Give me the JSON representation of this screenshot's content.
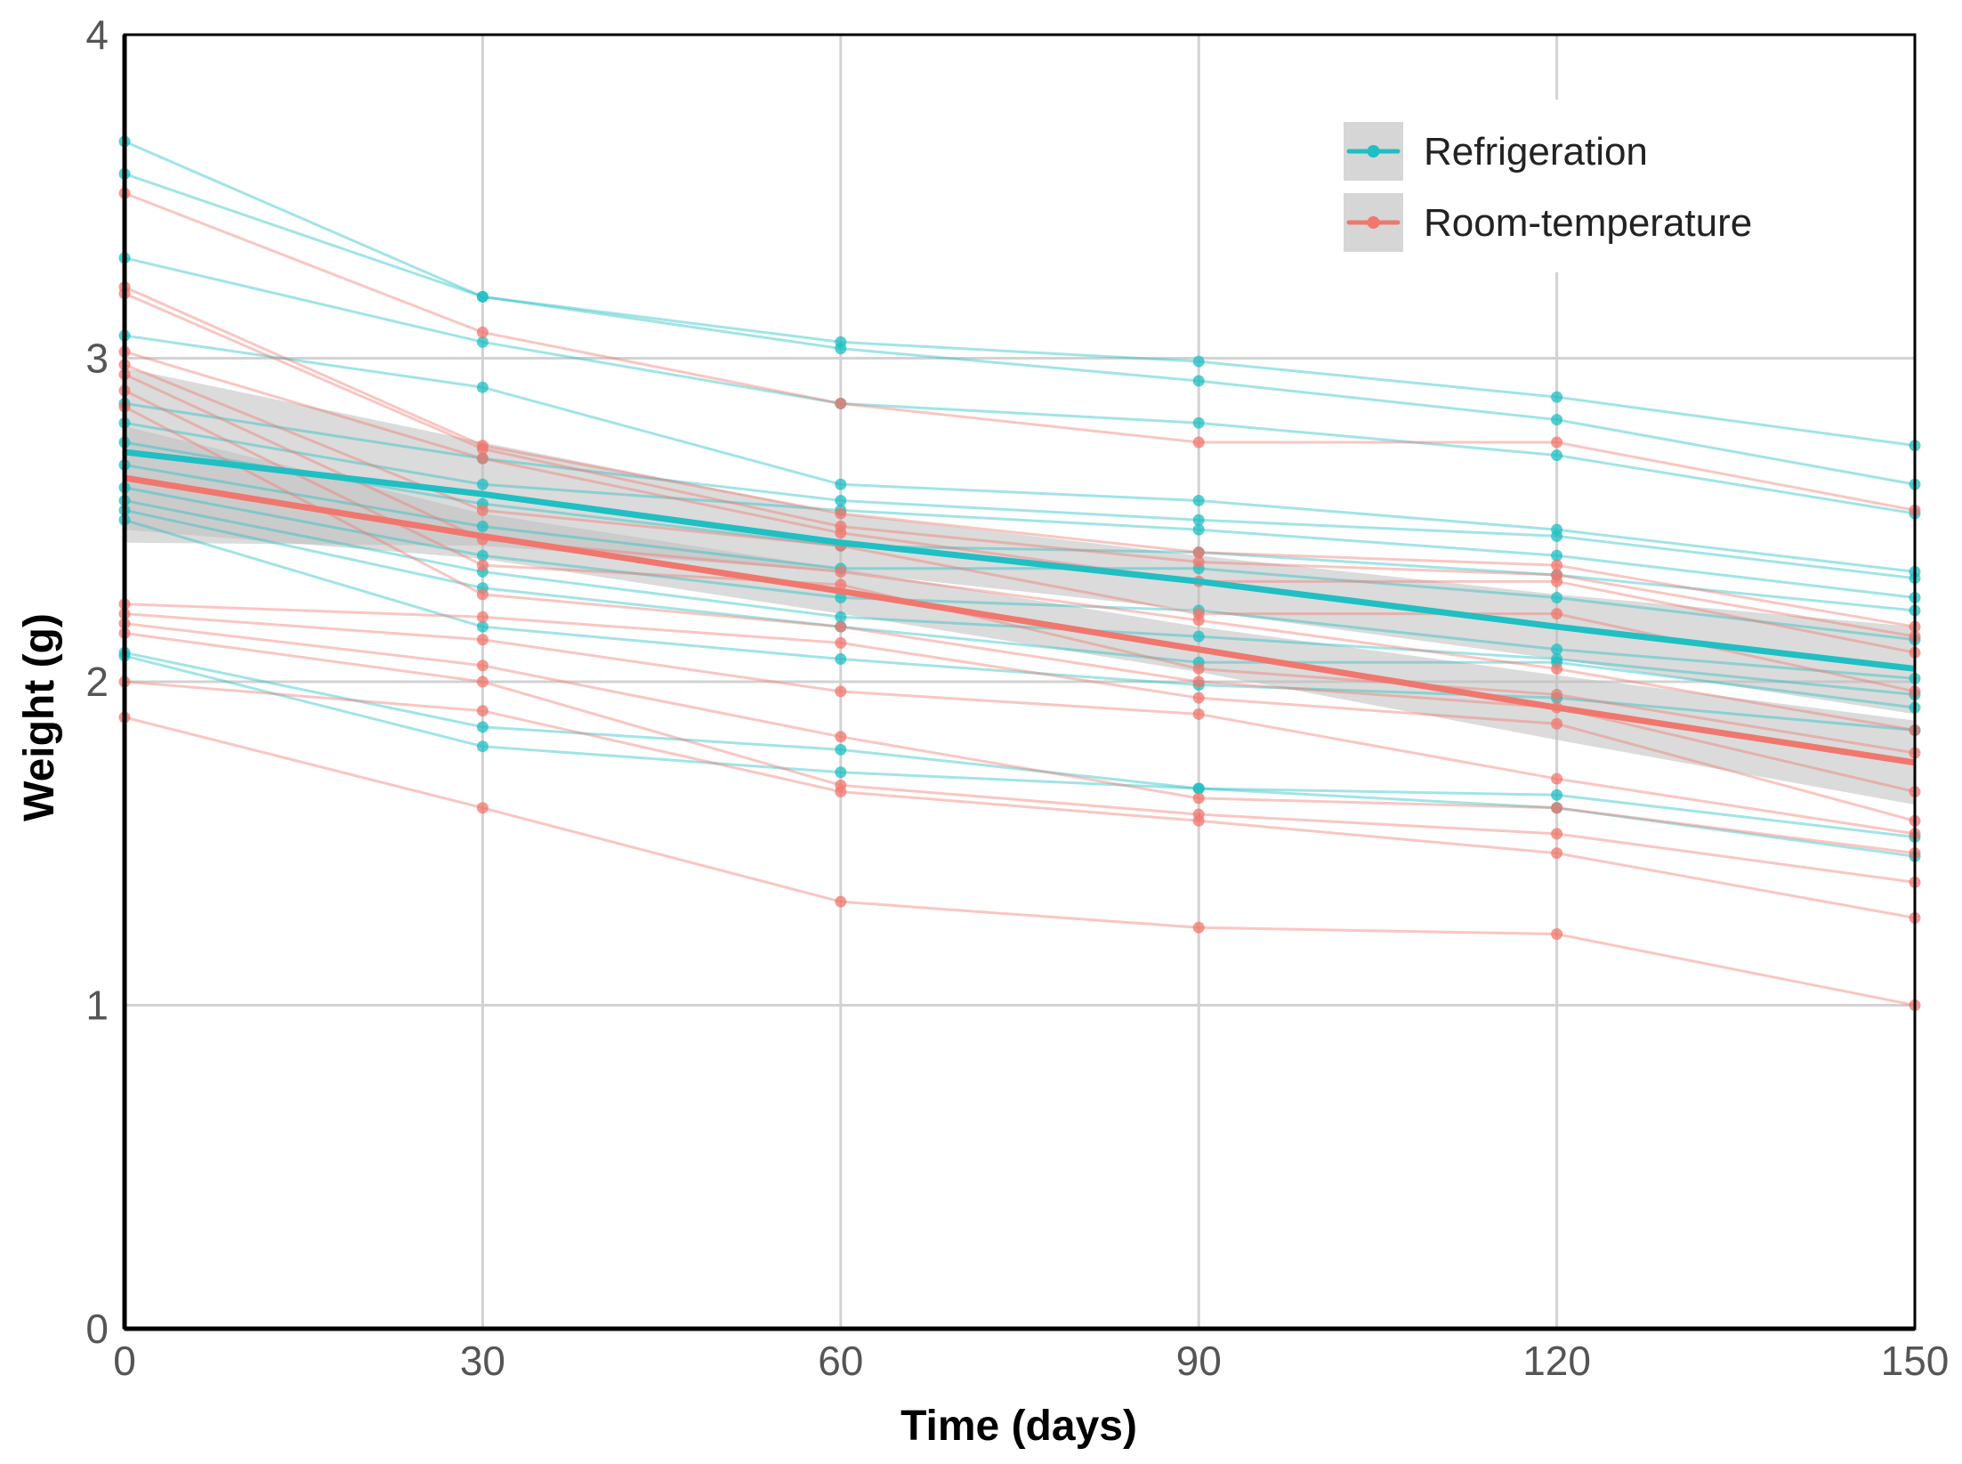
{
  "chart_data": {
    "type": "line",
    "title": "",
    "xlabel": "Time (days)",
    "ylabel": "Weight (g)",
    "xlim": [
      0,
      150
    ],
    "ylim": [
      0,
      4
    ],
    "x": [
      0,
      30,
      60,
      90,
      120,
      150
    ],
    "x_ticks": [
      "0",
      "30",
      "60",
      "90",
      "120",
      "150"
    ],
    "y_ticks": [
      "0",
      "1",
      "2",
      "3",
      "4"
    ],
    "grid": true,
    "legend_position": "top-right",
    "colors": {
      "Refrigeration": "#1FBFC3",
      "Room-temperature": "#F0776E",
      "band": "#BDBDBD"
    },
    "series": [
      {
        "name": "Refrigeration",
        "legend_label": "Refrigeration",
        "color": "#1FBFC3",
        "fit": [
          2.71,
          2.58,
          2.43,
          2.31,
          2.17,
          2.04
        ],
        "band_lower": [
          2.43,
          2.42,
          2.34,
          2.22,
          2.07,
          1.9
        ],
        "band_upper": [
          2.97,
          2.74,
          2.52,
          2.39,
          2.27,
          2.17
        ],
        "individuals": [
          [
            3.67,
            3.19,
            3.05,
            2.99,
            2.88,
            2.73
          ],
          [
            3.57,
            3.19,
            3.03,
            2.93,
            2.81,
            2.61
          ],
          [
            3.31,
            3.05,
            2.86,
            2.8,
            2.7,
            2.52
          ],
          [
            3.07,
            2.91,
            2.61,
            2.56,
            2.47,
            2.34
          ],
          [
            2.86,
            2.69,
            2.56,
            2.5,
            2.45,
            2.32
          ],
          [
            2.8,
            2.61,
            2.53,
            2.47,
            2.39,
            2.26
          ],
          [
            2.74,
            2.55,
            2.42,
            2.4,
            2.33,
            2.22
          ],
          [
            2.67,
            2.48,
            2.35,
            2.35,
            2.26,
            2.13
          ],
          [
            2.6,
            2.39,
            2.26,
            2.22,
            2.1,
            2.01
          ],
          [
            2.56,
            2.34,
            2.2,
            2.14,
            2.07,
            1.96
          ],
          [
            2.53,
            2.29,
            2.17,
            2.06,
            2.06,
            1.92
          ],
          [
            2.5,
            2.17,
            2.07,
            1.99,
            1.95,
            1.85
          ],
          [
            2.09,
            1.86,
            1.79,
            1.67,
            1.65,
            1.52
          ],
          [
            2.08,
            1.8,
            1.72,
            1.67,
            1.61,
            1.46
          ]
        ]
      },
      {
        "name": "Room-temperature",
        "legend_label": "Room-temperature",
        "color": "#F0776E",
        "fit": [
          2.63,
          2.45,
          2.28,
          2.1,
          1.92,
          1.75
        ],
        "band_lower": [
          2.47,
          2.38,
          2.21,
          2.03,
          1.82,
          1.62
        ],
        "band_upper": [
          2.79,
          2.52,
          2.35,
          2.17,
          2.02,
          1.88
        ],
        "individuals": [
          [
            3.51,
            3.08,
            2.86,
            2.74,
            2.74,
            2.53
          ],
          [
            3.22,
            2.73,
            2.52,
            2.4,
            2.36,
            2.17
          ],
          [
            3.2,
            2.72,
            2.48,
            2.37,
            2.33,
            2.14
          ],
          [
            3.02,
            2.69,
            2.46,
            2.31,
            2.31,
            2.09
          ],
          [
            2.98,
            2.53,
            2.42,
            2.21,
            2.21,
            1.97
          ],
          [
            2.95,
            2.44,
            2.34,
            2.19,
            2.04,
            1.85
          ],
          [
            2.9,
            2.36,
            2.3,
            2.04,
            1.96,
            1.78
          ],
          [
            2.85,
            2.27,
            2.17,
            2.0,
            1.92,
            1.66
          ],
          [
            2.24,
            2.2,
            2.12,
            1.95,
            1.87,
            1.57
          ],
          [
            2.21,
            2.13,
            1.97,
            1.9,
            1.7,
            1.53
          ],
          [
            2.18,
            2.05,
            1.83,
            1.64,
            1.61,
            1.47
          ],
          [
            2.15,
            2.0,
            1.68,
            1.59,
            1.53,
            1.38
          ],
          [
            2.0,
            1.91,
            1.66,
            1.57,
            1.47,
            1.27
          ],
          [
            1.89,
            1.61,
            1.32,
            1.24,
            1.22,
            1.0
          ]
        ]
      }
    ]
  }
}
